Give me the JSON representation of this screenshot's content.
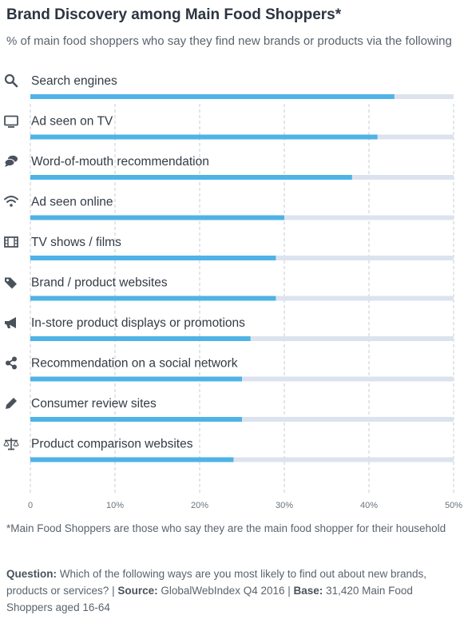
{
  "header": {
    "title": "Brand Discovery among Main Food Shoppers*",
    "subtitle": "% of main food shoppers who say they find new brands or products via the following"
  },
  "colors": {
    "bar": "#4fb3e6",
    "track": "#dde3ee",
    "grid": "#c5ccd6",
    "icon": "#4a525c"
  },
  "chart_data": {
    "type": "bar",
    "orientation": "horizontal",
    "categories": [
      "Search engines",
      "Ad seen on TV",
      "Word-of-mouth recommendation",
      "Ad seen online",
      "TV shows / films",
      "Brand / product websites",
      "In-store product displays or promotions",
      "Recommendation on a social network",
      "Consumer review sites",
      "Product comparison websites"
    ],
    "icons": [
      "search-icon",
      "tv-icon",
      "chat-icon",
      "wifi-icon",
      "film-icon",
      "tags-icon",
      "megaphone-icon",
      "share-icon",
      "pencil-icon",
      "scales-icon"
    ],
    "values": [
      43,
      41,
      38,
      30,
      29,
      29,
      26,
      25,
      25,
      24
    ],
    "xlim": [
      0,
      50
    ],
    "ticks": [
      0,
      10,
      20,
      30,
      40,
      50
    ],
    "tick_labels": [
      "0",
      "10%",
      "20%",
      "30%",
      "40%",
      "50%"
    ],
    "grid": true
  },
  "footnote": "*Main Food Shoppers are those who say they are the main food shopper for their household",
  "question": {
    "question_label": "Question:",
    "question_text": "Which of the following ways are you most likely to find out about new brands, products or services?",
    "source_label": "Source:",
    "source_text": "GlobalWebIndex Q4 2016",
    "base_label": "Base:",
    "base_text": "31,420 Main Food Shoppers aged 16-64"
  }
}
